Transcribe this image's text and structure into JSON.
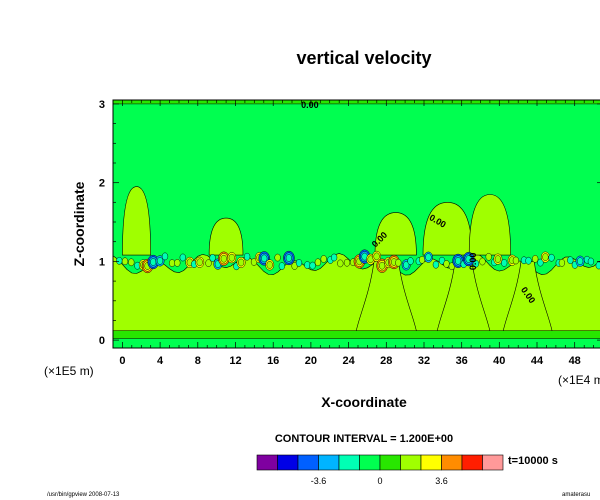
{
  "chart_data": {
    "type": "contour",
    "title": "vertical velocity",
    "xlabel": "X-coordinate",
    "ylabel": "Z-coordinate",
    "x_unit": "(×1E4 m)",
    "y_unit": "(×1E5 m)",
    "x_ticks": [
      "0",
      "4",
      "8",
      "12",
      "16",
      "20",
      "24",
      "28",
      "32",
      "36",
      "40",
      "44",
      "48"
    ],
    "y_ticks": [
      "0",
      "1",
      "2",
      "3"
    ],
    "xlim": [
      -1,
      51
    ],
    "ylim": [
      -0.1,
      3.05
    ],
    "contour_interval_text": "CONTOUR INTERVAL = 1.200E+00",
    "time_text": "t=10000 s",
    "contour_labels": [
      {
        "text": "0.00",
        "x": 19.9,
        "y": 2.95,
        "angle": 0
      },
      {
        "text": "0.00",
        "x": 33.3,
        "y": 1.48,
        "angle": 30
      },
      {
        "text": "0.00",
        "x": 27.5,
        "y": 1.25,
        "angle": -45
      },
      {
        "text": "0.00",
        "x": 37.5,
        "y": 1.0,
        "angle": -90
      },
      {
        "text": "0.00",
        "x": 42.8,
        "y": 0.55,
        "angle": 55
      }
    ],
    "colorbar": {
      "colors": [
        "#7f00a0",
        "#0000e6",
        "#0060ff",
        "#00b4ff",
        "#00ffb4",
        "#00ff50",
        "#28e600",
        "#a0ff00",
        "#ffff00",
        "#ff8c00",
        "#ff1e00",
        "#ff9999"
      ],
      "tick_labels": [
        {
          "label": "-3.6",
          "index": 3
        },
        {
          "label": "0",
          "index": 6
        },
        {
          "label": "3.6",
          "index": 9
        }
      ]
    },
    "footer_left": "/usr/bin/gpview 2008-07-13",
    "footer_right": "amaterasu"
  }
}
